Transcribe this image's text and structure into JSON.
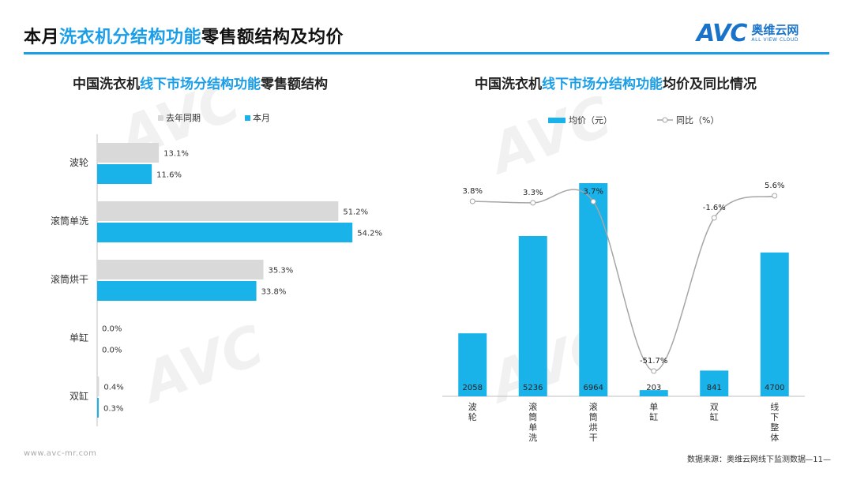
{
  "header": {
    "title_pre": "本月",
    "title_hl": "洗衣机分结构功能",
    "title_post": "零售额结构及均价",
    "logo_text": "AVC",
    "logo_cn": "奥维云网",
    "logo_en": "ALL VIEW CLOUD"
  },
  "left_panel": {
    "title_pre": "中国洗衣机",
    "title_hl": "线下市场分结构功能",
    "title_post": "零售额结构"
  },
  "right_panel": {
    "title_pre": "中国洗衣机",
    "title_hl": "线下市场分结构功能",
    "title_post": "均价及同比情况"
  },
  "chart_data": [
    {
      "type": "bar",
      "orientation": "horizontal",
      "categories": [
        "波轮",
        "滚筒单洗",
        "滚筒烘干",
        "单缸",
        "双缸"
      ],
      "series": [
        {
          "name": "去年同期",
          "values": [
            13.1,
            51.2,
            35.3,
            0.0,
            0.4
          ],
          "labels": [
            "13.1%",
            "51.2%",
            "35.3%",
            "0.0%",
            "0.4%"
          ],
          "color": "#d9d9d9"
        },
        {
          "name": "本月",
          "values": [
            11.6,
            54.2,
            33.8,
            0.0,
            0.3
          ],
          "labels": [
            "11.6%",
            "54.2%",
            "33.8%",
            "0.0%",
            "0.3%"
          ],
          "color": "#19b3ea"
        }
      ],
      "xlim": [
        0,
        60
      ],
      "legend": "top"
    },
    {
      "type": "bar",
      "categories": [
        "波轮",
        "滚筒单洗",
        "滚筒烘干",
        "单缸",
        "双缸",
        "线下整体"
      ],
      "series": [
        {
          "name": "均价（元）",
          "type": "bar",
          "values": [
            2058,
            5236,
            6964,
            203,
            841,
            4700
          ],
          "labels": [
            "2058",
            "5236",
            "6964",
            "203",
            "841",
            "4700"
          ],
          "color": "#19b3ea"
        },
        {
          "name": "同比（%）",
          "type": "line",
          "values": [
            3.8,
            3.3,
            3.7,
            -51.7,
            -1.6,
            5.6
          ],
          "labels": [
            "3.8%",
            "3.3%",
            "3.7%",
            "-51.7%",
            "-1.6%",
            "5.6%"
          ],
          "color": "#a6a6a6"
        }
      ],
      "ylim": [
        0,
        7200
      ],
      "y2lim": [
        -60,
        10
      ],
      "legend": "top"
    }
  ],
  "footer": {
    "url": "www.avc-mr.com",
    "source": "数据来源：奥维云网线下监测数据",
    "page": "—11—"
  }
}
